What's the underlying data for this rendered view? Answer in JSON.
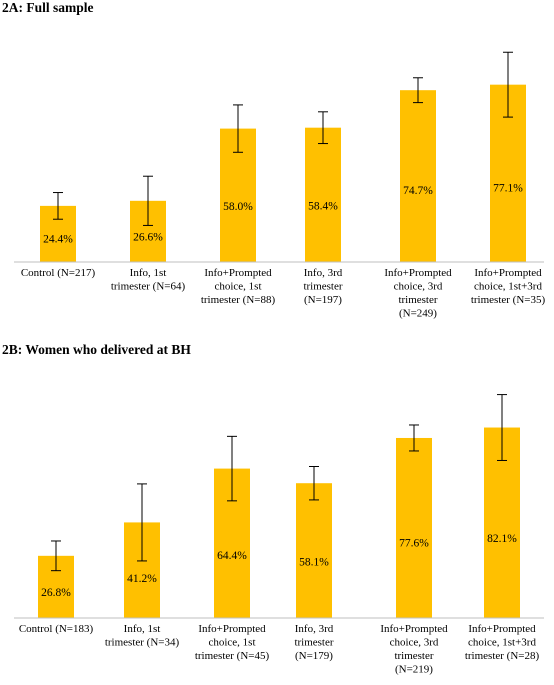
{
  "chart_data": [
    {
      "type": "bar",
      "title": "2A: Full sample",
      "categories": [
        [
          "Control (N=217)"
        ],
        [
          "Info, 1st",
          "trimester (N=64)"
        ],
        [
          "Info+Prompted",
          "choice, 1st",
          "trimester (N=88)"
        ],
        [
          "Info, 3rd",
          "trimester",
          "(N=197)"
        ],
        [
          "Info+Prompted",
          "choice, 3rd",
          "trimester",
          "(N=249)"
        ],
        [
          "Info+Prompted",
          "choice, 1st+3rd",
          "trimester (N=35)"
        ]
      ],
      "values": [
        24.4,
        26.6,
        58.0,
        58.4,
        74.7,
        77.1
      ],
      "data_labels": [
        "24.4%",
        "26.6%",
        "58.0%",
        "58.4%",
        "74.7%",
        "77.1%"
      ],
      "error_low": [
        18.6,
        15.9,
        47.7,
        51.5,
        69.3,
        63.0
      ],
      "error_high": [
        30.2,
        37.3,
        68.3,
        65.3,
        80.1,
        91.2
      ],
      "ylim": [
        0,
        100
      ],
      "color": "#FFC000",
      "grid": false
    },
    {
      "type": "bar",
      "title": "2B: Women who delivered at BH",
      "categories": [
        [
          "Control (N=183)"
        ],
        [
          "Info, 1st",
          "trimester (N=34)"
        ],
        [
          "Info+Prompted",
          "choice, 1st",
          "trimester (N=45)"
        ],
        [
          "Info, 3rd",
          "trimester",
          "(N=179)"
        ],
        [
          "Info+Prompted",
          "choice, 3rd",
          "trimester",
          "(N=219)"
        ],
        [
          "Info+Prompted",
          "choice, 1st+3rd",
          "trimester (N=28)"
        ]
      ],
      "values": [
        26.8,
        41.2,
        64.4,
        58.1,
        77.6,
        82.1
      ],
      "data_labels": [
        "26.8%",
        "41.2%",
        "64.4%",
        "58.1%",
        "77.6%",
        "82.1%"
      ],
      "error_low": [
        20.4,
        24.6,
        50.5,
        50.9,
        72.0,
        67.9
      ],
      "error_high": [
        33.2,
        57.8,
        78.3,
        65.3,
        83.2,
        96.3
      ],
      "ylim": [
        0,
        100
      ],
      "color": "#FFC000",
      "grid": false
    }
  ]
}
